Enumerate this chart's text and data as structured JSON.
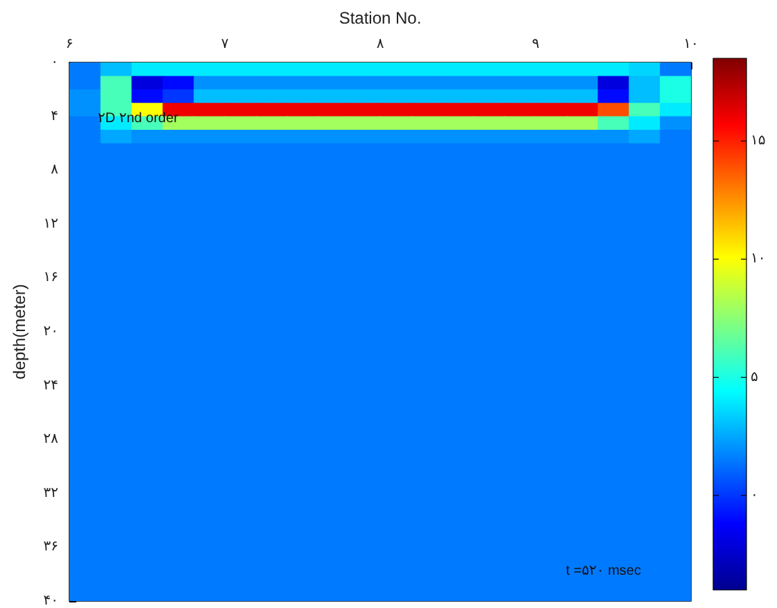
{
  "chart_data": {
    "type": "heatmap",
    "xlabel": "Station No.",
    "ylabel": "depth(meter)",
    "xlim": [
      6,
      10
    ],
    "xticks": [
      {
        "value": 6,
        "label": "۶"
      },
      {
        "value": 7,
        "label": "۷"
      },
      {
        "value": 8,
        "label": "۸"
      },
      {
        "value": 9,
        "label": "۹"
      },
      {
        "value": 10,
        "label": "۱۰"
      }
    ],
    "ylim": [
      40,
      0
    ],
    "yticks": [
      {
        "value": 0,
        "label": "۰"
      },
      {
        "value": 4,
        "label": "۴"
      },
      {
        "value": 8,
        "label": "۸"
      },
      {
        "value": 12,
        "label": "۱۲"
      },
      {
        "value": 16,
        "label": "۱۶"
      },
      {
        "value": 20,
        "label": "۲۰"
      },
      {
        "value": 24,
        "label": "۲۴"
      },
      {
        "value": 28,
        "label": "۲۸"
      },
      {
        "value": 32,
        "label": "۳۲"
      },
      {
        "value": 36,
        "label": "۳۶"
      },
      {
        "value": 40,
        "label": "۴۰"
      }
    ],
    "clim": [
      -4,
      18.5
    ],
    "cticks": [
      {
        "value": 0,
        "label": "۰"
      },
      {
        "value": 5,
        "label": "۵"
      },
      {
        "value": 10,
        "label": "۱۰"
      },
      {
        "value": 15,
        "label": "۱۵"
      }
    ],
    "annotations": [
      "۲D ۲nd order",
      "t =۵۲۰ msec"
    ],
    "cells": [
      [
        1.5,
        3,
        4,
        4,
        4,
        4,
        4,
        4,
        4,
        4,
        4,
        4,
        4,
        4,
        4,
        4,
        4,
        4,
        3.5,
        1.5
      ],
      [
        1.5,
        6,
        -2,
        -1,
        2,
        2,
        2,
        2,
        2,
        2,
        2,
        2,
        2,
        2,
        2,
        2,
        2,
        -2,
        3,
        5
      ],
      [
        2,
        6,
        -1,
        0,
        3,
        3,
        3,
        3,
        3,
        3,
        3,
        3,
        3,
        3,
        3,
        3,
        3,
        -1,
        3,
        5
      ],
      [
        2,
        6,
        10,
        16,
        16,
        16,
        16,
        16,
        16,
        16,
        16,
        16,
        16,
        16,
        16,
        16,
        16,
        14,
        6,
        4
      ],
      [
        1.5,
        4,
        6,
        8,
        8,
        8,
        8,
        8,
        8,
        8,
        8,
        8,
        8,
        8,
        8,
        8,
        8,
        6,
        4,
        2
      ],
      [
        1.5,
        2.5,
        2,
        2,
        2,
        2,
        2,
        2,
        2,
        2,
        2,
        2,
        2,
        2,
        2,
        2,
        2,
        2,
        2.5,
        1.5
      ],
      [
        1.5,
        1.5,
        1.5,
        1.5,
        1.5,
        1.5,
        1.5,
        1.5,
        1.5,
        1.5,
        1.5,
        1.5,
        1.5,
        1.5,
        1.5,
        1.5,
        1.5,
        1.5,
        1.5,
        1.5
      ],
      [
        1.5,
        1.5,
        1.5,
        1.5,
        1.5,
        1.5,
        1.5,
        1.5,
        1.5,
        1.5,
        1.5,
        1.5,
        1.5,
        1.5,
        1.5,
        1.5,
        1.5,
        1.5,
        1.5,
        1.5
      ],
      [
        1.5,
        1.5,
        1.5,
        1.5,
        1.5,
        1.5,
        1.5,
        1.5,
        1.5,
        1.5,
        1.5,
        1.5,
        1.5,
        1.5,
        1.5,
        1.5,
        1.5,
        1.5,
        1.5,
        1.5
      ],
      [
        1.5,
        1.5,
        1.5,
        1.5,
        1.5,
        1.5,
        1.5,
        1.5,
        1.5,
        1.5,
        1.5,
        1.5,
        1.5,
        1.5,
        1.5,
        1.5,
        1.5,
        1.5,
        1.5,
        1.5
      ],
      [
        1.5,
        1.5,
        1.5,
        1.5,
        1.5,
        1.5,
        1.5,
        1.5,
        1.5,
        1.5,
        1.5,
        1.5,
        1.5,
        1.5,
        1.5,
        1.5,
        1.5,
        1.5,
        1.5,
        1.5
      ],
      [
        1.5,
        1.5,
        1.5,
        1.5,
        1.5,
        1.5,
        1.5,
        1.5,
        1.5,
        1.5,
        1.5,
        1.5,
        1.5,
        1.5,
        1.5,
        1.5,
        1.5,
        1.5,
        1.5,
        1.5
      ],
      [
        1.5,
        1.5,
        1.5,
        1.5,
        1.5,
        1.5,
        1.5,
        1.5,
        1.5,
        1.5,
        1.5,
        1.5,
        1.5,
        1.5,
        1.5,
        1.5,
        1.5,
        1.5,
        1.5,
        1.5
      ],
      [
        1.5,
        1.5,
        1.5,
        1.5,
        1.5,
        1.5,
        1.5,
        1.5,
        1.5,
        1.5,
        1.5,
        1.5,
        1.5,
        1.5,
        1.5,
        1.5,
        1.5,
        1.5,
        1.5,
        1.5
      ],
      [
        1.5,
        1.5,
        1.5,
        1.5,
        1.5,
        1.5,
        1.5,
        1.5,
        1.5,
        1.5,
        1.5,
        1.5,
        1.5,
        1.5,
        1.5,
        1.5,
        1.5,
        1.5,
        1.5,
        1.5
      ],
      [
        1.5,
        1.5,
        1.5,
        1.5,
        1.5,
        1.5,
        1.5,
        1.5,
        1.5,
        1.5,
        1.5,
        1.5,
        1.5,
        1.5,
        1.5,
        1.5,
        1.5,
        1.5,
        1.5,
        1.5
      ],
      [
        1.5,
        1.5,
        1.5,
        1.5,
        1.5,
        1.5,
        1.5,
        1.5,
        1.5,
        1.5,
        1.5,
        1.5,
        1.5,
        1.5,
        1.5,
        1.5,
        1.5,
        1.5,
        1.5,
        1.5
      ],
      [
        1.5,
        1.5,
        1.5,
        1.5,
        1.5,
        1.5,
        1.5,
        1.5,
        1.5,
        1.5,
        1.5,
        1.5,
        1.5,
        1.5,
        1.5,
        1.5,
        1.5,
        1.5,
        1.5,
        1.5
      ],
      [
        1.5,
        1.5,
        1.5,
        1.5,
        1.5,
        1.5,
        1.5,
        1.5,
        1.5,
        1.5,
        1.5,
        1.5,
        1.5,
        1.5,
        1.5,
        1.5,
        1.5,
        1.5,
        1.5,
        1.5
      ],
      [
        1.5,
        1.5,
        1.5,
        1.5,
        1.5,
        1.5,
        1.5,
        1.5,
        1.5,
        1.5,
        1.5,
        1.5,
        1.5,
        1.5,
        1.5,
        1.5,
        1.5,
        1.5,
        1.5,
        1.5
      ],
      [
        1.5,
        1.5,
        1.5,
        1.5,
        1.5,
        1.5,
        1.5,
        1.5,
        1.5,
        1.5,
        1.5,
        1.5,
        1.5,
        1.5,
        1.5,
        1.5,
        1.5,
        1.5,
        1.5,
        1.5
      ],
      [
        1.5,
        1.5,
        1.5,
        1.5,
        1.5,
        1.5,
        1.5,
        1.5,
        1.5,
        1.5,
        1.5,
        1.5,
        1.5,
        1.5,
        1.5,
        1.5,
        1.5,
        1.5,
        1.5,
        1.5
      ],
      [
        1.5,
        1.5,
        1.5,
        1.5,
        1.5,
        1.5,
        1.5,
        1.5,
        1.5,
        1.5,
        1.5,
        1.5,
        1.5,
        1.5,
        1.5,
        1.5,
        1.5,
        1.5,
        1.5,
        1.5
      ],
      [
        1.5,
        1.5,
        1.5,
        1.5,
        1.5,
        1.5,
        1.5,
        1.5,
        1.5,
        1.5,
        1.5,
        1.5,
        1.5,
        1.5,
        1.5,
        1.5,
        1.5,
        1.5,
        1.5,
        1.5
      ],
      [
        1.5,
        1.5,
        1.5,
        1.5,
        1.5,
        1.5,
        1.5,
        1.5,
        1.5,
        1.5,
        1.5,
        1.5,
        1.5,
        1.5,
        1.5,
        1.5,
        1.5,
        1.5,
        1.5,
        1.5
      ],
      [
        1.5,
        1.5,
        1.5,
        1.5,
        1.5,
        1.5,
        1.5,
        1.5,
        1.5,
        1.5,
        1.5,
        1.5,
        1.5,
        1.5,
        1.5,
        1.5,
        1.5,
        1.5,
        1.5,
        1.5
      ],
      [
        1.5,
        1.5,
        1.5,
        1.5,
        1.5,
        1.5,
        1.5,
        1.5,
        1.5,
        1.5,
        1.5,
        1.5,
        1.5,
        1.5,
        1.5,
        1.5,
        1.5,
        1.5,
        1.5,
        1.5
      ],
      [
        1.5,
        1.5,
        1.5,
        1.5,
        1.5,
        1.5,
        1.5,
        1.5,
        1.5,
        1.5,
        1.5,
        1.5,
        1.5,
        1.5,
        1.5,
        1.5,
        1.5,
        1.5,
        1.5,
        1.5
      ],
      [
        1.5,
        1.5,
        1.5,
        1.5,
        1.5,
        1.5,
        1.5,
        1.5,
        1.5,
        1.5,
        1.5,
        1.5,
        1.5,
        1.5,
        1.5,
        1.5,
        1.5,
        1.5,
        1.5,
        1.5
      ],
      [
        1.5,
        1.5,
        1.5,
        1.5,
        1.5,
        1.5,
        1.5,
        1.5,
        1.5,
        1.5,
        1.5,
        1.5,
        1.5,
        1.5,
        1.5,
        1.5,
        1.5,
        1.5,
        1.5,
        1.5
      ],
      [
        1.5,
        1.5,
        1.5,
        1.5,
        1.5,
        1.5,
        1.5,
        1.5,
        1.5,
        1.5,
        1.5,
        1.5,
        1.5,
        1.5,
        1.5,
        1.5,
        1.5,
        1.5,
        1.5,
        1.5
      ],
      [
        1.5,
        1.5,
        1.5,
        1.5,
        1.5,
        1.5,
        1.5,
        1.5,
        1.5,
        1.5,
        1.5,
        1.5,
        1.5,
        1.5,
        1.5,
        1.5,
        1.5,
        1.5,
        1.5,
        1.5
      ],
      [
        1.5,
        1.5,
        1.5,
        1.5,
        1.5,
        1.5,
        1.5,
        1.5,
        1.5,
        1.5,
        1.5,
        1.5,
        1.5,
        1.5,
        1.5,
        1.5,
        1.5,
        1.5,
        1.5,
        1.5
      ],
      [
        1.5,
        1.5,
        1.5,
        1.5,
        1.5,
        1.5,
        1.5,
        1.5,
        1.5,
        1.5,
        1.5,
        1.5,
        1.5,
        1.5,
        1.5,
        1.5,
        1.5,
        1.5,
        1.5,
        1.5
      ],
      [
        1.5,
        1.5,
        1.5,
        1.5,
        1.5,
        1.5,
        1.5,
        1.5,
        1.5,
        1.5,
        1.5,
        1.5,
        1.5,
        1.5,
        1.5,
        1.5,
        1.5,
        1.5,
        1.5,
        1.5
      ],
      [
        1.5,
        1.5,
        1.5,
        1.5,
        1.5,
        1.5,
        1.5,
        1.5,
        1.5,
        1.5,
        1.5,
        1.5,
        1.5,
        1.5,
        1.5,
        1.5,
        1.5,
        1.5,
        1.5,
        1.5
      ],
      [
        1.5,
        1.5,
        1.5,
        1.5,
        1.5,
        1.5,
        1.5,
        1.5,
        1.5,
        1.5,
        1.5,
        1.5,
        1.5,
        1.5,
        1.5,
        1.5,
        1.5,
        1.5,
        1.5,
        1.5
      ],
      [
        1.5,
        1.5,
        1.5,
        1.5,
        1.5,
        1.5,
        1.5,
        1.5,
        1.5,
        1.5,
        1.5,
        1.5,
        1.5,
        1.5,
        1.5,
        1.5,
        1.5,
        1.5,
        1.5,
        1.5
      ],
      [
        1.5,
        1.5,
        1.5,
        1.5,
        1.5,
        1.5,
        1.5,
        1.5,
        1.5,
        1.5,
        1.5,
        1.5,
        1.5,
        1.5,
        1.5,
        1.5,
        1.5,
        1.5,
        1.5,
        1.5
      ],
      [
        1.5,
        1.5,
        1.5,
        1.5,
        1.5,
        1.5,
        1.5,
        1.5,
        1.5,
        1.5,
        1.5,
        1.5,
        1.5,
        1.5,
        1.5,
        1.5,
        1.5,
        1.5,
        1.5,
        1.5
      ]
    ]
  }
}
